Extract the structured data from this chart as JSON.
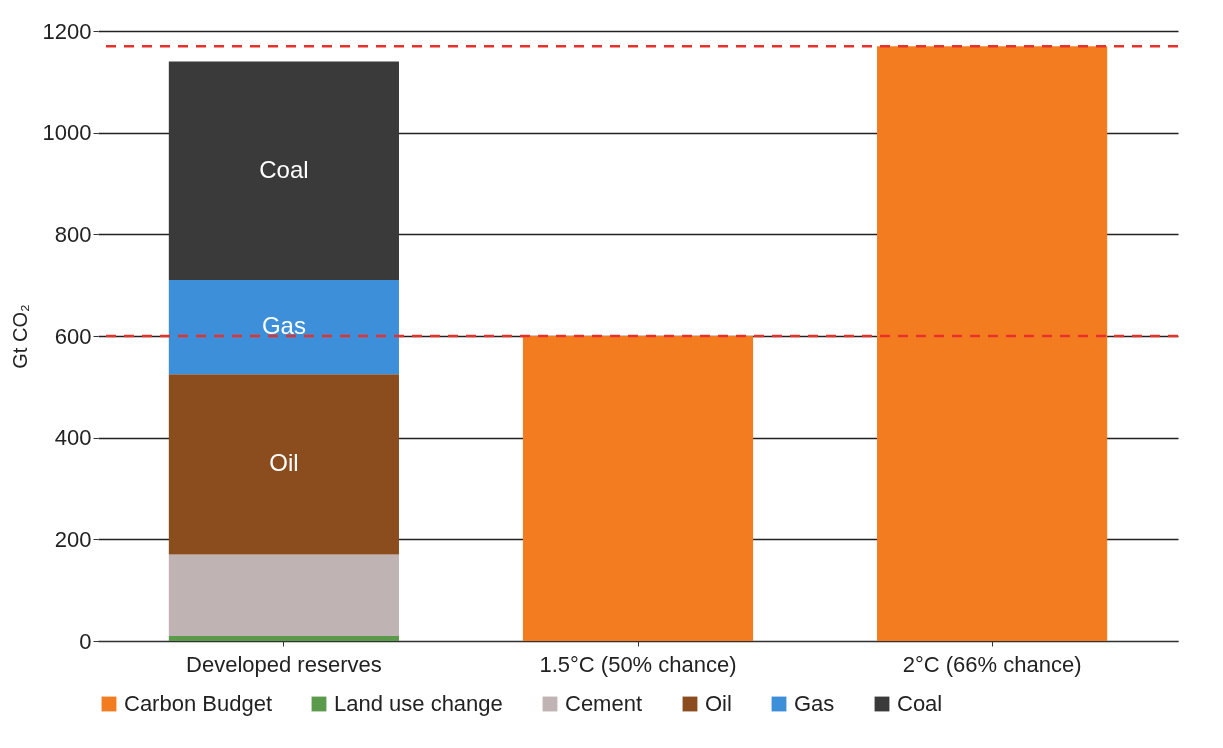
{
  "chart_data": {
    "type": "bar",
    "stacked": true,
    "ylabel": "Gt CO₂",
    "categories": [
      "Developed reserves",
      "1.5°C (50% chance)",
      "2°C (66% chance)"
    ],
    "series": [
      {
        "name": "Carbon Budget",
        "color": "#f47c20",
        "values": [
          null,
          600,
          1170
        ]
      },
      {
        "name": "Land use change",
        "color": "#5a9a4a",
        "values": [
          10,
          null,
          null
        ]
      },
      {
        "name": "Cement",
        "color": "#bfb3b3",
        "values": [
          160,
          null,
          null
        ]
      },
      {
        "name": "Oil",
        "color": "#8b4d1e",
        "values": [
          355,
          null,
          null
        ]
      },
      {
        "name": "Gas",
        "color": "#3d8fd9",
        "values": [
          185,
          null,
          null
        ]
      },
      {
        "name": "Coal",
        "color": "#3a3a3a",
        "values": [
          430,
          null,
          null
        ]
      }
    ],
    "ylim": [
      0,
      1200
    ],
    "yticks": [
      0,
      200,
      400,
      600,
      800,
      {
        "value": 1000,
        "label": "1000"
      },
      {
        "value": 1200,
        "label": "1200"
      }
    ],
    "grid": "y",
    "legend": "bottom",
    "ref_lines": [
      {
        "axis": "y",
        "value": 600,
        "color": "#e8312a",
        "line_style": "dashed"
      },
      {
        "axis": "y",
        "value": 1170,
        "color": "#e8312a",
        "line_style": "dashed"
      }
    ],
    "annotations": [
      "Coal",
      "Gas",
      "Oil"
    ]
  }
}
